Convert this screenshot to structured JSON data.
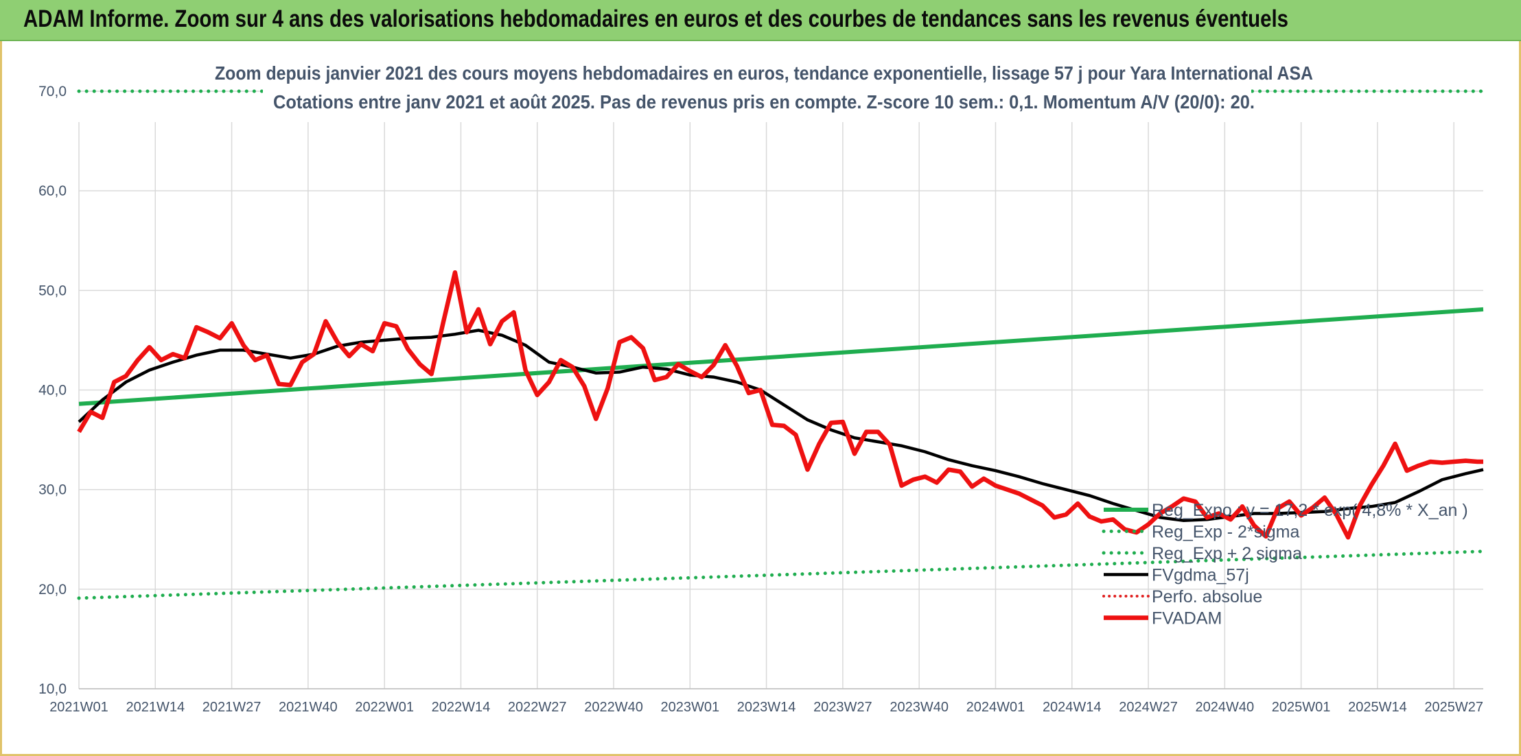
{
  "header": {
    "title": "ADAM Informe. Zoom sur 4 ans des valorisations hebdomadaires en euros et des courbes de tendances sans les revenus éventuels"
  },
  "chart_data": {
    "type": "line",
    "title_line1": "Zoom depuis janvier 2021 des cours moyens hebdomadaires en euros, tendance exponentielle, lissage 57 j pour Yara International ASA",
    "title_line2": "Cotations entre janv 2021 et août 2025. Pas de revenus pris en compte. Z-score 10 sem.: 0,1. Momentum A/V (20/0): 20.",
    "ylim": [
      10,
      70
    ],
    "yticks": [
      "10,0",
      "20,0",
      "30,0",
      "40,0",
      "50,0",
      "60,0",
      "70,0"
    ],
    "xticks": [
      "2021W01",
      "2021W14",
      "2021W27",
      "2021W40",
      "2022W01",
      "2022W14",
      "2022W27",
      "2022W40",
      "2023W01",
      "2023W14",
      "2023W27",
      "2023W40",
      "2024W01",
      "2024W14",
      "2024W27",
      "2024W40",
      "2025W01",
      "2025W14",
      "2025W27"
    ],
    "x_start_week": "2021W01",
    "x_end_week": "2025W32",
    "grid": true,
    "legend_position": "right",
    "colors": {
      "reg_expo": "#1fad4f",
      "sigma": "#1fad4f",
      "fvgdma": "#000000",
      "perfo": "#e02020",
      "fvadam": "#ee1111",
      "grid": "#d9d9d9",
      "text": "#44546a"
    },
    "series": [
      {
        "name": "Reg_Expo : y = 17,2 * exp( 4,8% * X_an )",
        "style": "solid",
        "x": [
          "2021W01",
          "2025W32"
        ],
        "values": [
          38.6,
          48.1
        ]
      },
      {
        "name": "Reg_Exp - 2*sigma",
        "style": "dotted",
        "x": [
          "2021W01",
          "2025W32"
        ],
        "values": [
          19.1,
          23.8
        ]
      },
      {
        "name": "Reg_Exp + 2 sigma",
        "style": "dotted",
        "x": [
          "2021W01",
          "2025W32"
        ],
        "values": [
          70.0,
          70.0
        ]
      },
      {
        "name": "FVgdma_57j",
        "style": "solid",
        "x": [
          "2021W01",
          "2021W05",
          "2021W09",
          "2021W13",
          "2021W17",
          "2021W21",
          "2021W25",
          "2021W29",
          "2021W33",
          "2021W37",
          "2021W41",
          "2021W45",
          "2021W49",
          "2022W01",
          "2022W05",
          "2022W09",
          "2022W13",
          "2022W17",
          "2022W21",
          "2022W25",
          "2022W29",
          "2022W33",
          "2022W37",
          "2022W41",
          "2022W45",
          "2022W49",
          "2023W01",
          "2023W05",
          "2023W09",
          "2023W13",
          "2023W17",
          "2023W21",
          "2023W25",
          "2023W29",
          "2023W33",
          "2023W37",
          "2023W41",
          "2023W45",
          "2023W49",
          "2024W01",
          "2024W05",
          "2024W09",
          "2024W13",
          "2024W17",
          "2024W21",
          "2024W25",
          "2024W29",
          "2024W33",
          "2024W37",
          "2024W41",
          "2024W45",
          "2024W49",
          "2025W01",
          "2025W05",
          "2025W09",
          "2025W13",
          "2025W17",
          "2025W21",
          "2025W25",
          "2025W29",
          "2025W32"
        ],
        "values": [
          36.8,
          39.0,
          40.8,
          42.0,
          42.8,
          43.5,
          44.0,
          44.0,
          43.6,
          43.2,
          43.6,
          44.4,
          44.8,
          45.0,
          45.2,
          45.3,
          45.6,
          46.0,
          45.5,
          44.5,
          42.8,
          42.3,
          41.7,
          41.8,
          42.3,
          42.1,
          41.5,
          41.3,
          40.8,
          40.0,
          38.5,
          37.0,
          36.0,
          35.2,
          34.8,
          34.4,
          33.8,
          33.0,
          32.4,
          31.9,
          31.3,
          30.6,
          30.0,
          29.4,
          28.6,
          27.9,
          27.2,
          26.9,
          27.0,
          27.3,
          27.6,
          27.6,
          27.7,
          27.8,
          28.1,
          28.3,
          28.7,
          29.8,
          31.0,
          31.6,
          32.0
        ]
      },
      {
        "name": "Perfo. absolue",
        "style": "dotted",
        "x": [],
        "values": []
      },
      {
        "name": "FVADAM",
        "style": "thick",
        "x": [
          "2021W01",
          "2021W03",
          "2021W05",
          "2021W07",
          "2021W09",
          "2021W11",
          "2021W13",
          "2021W15",
          "2021W17",
          "2021W19",
          "2021W21",
          "2021W23",
          "2021W25",
          "2021W27",
          "2021W29",
          "2021W31",
          "2021W33",
          "2021W35",
          "2021W37",
          "2021W39",
          "2021W41",
          "2021W43",
          "2021W45",
          "2021W47",
          "2021W49",
          "2021W51",
          "2022W01",
          "2022W03",
          "2022W05",
          "2022W07",
          "2022W09",
          "2022W11",
          "2022W13",
          "2022W15",
          "2022W17",
          "2022W19",
          "2022W21",
          "2022W23",
          "2022W25",
          "2022W27",
          "2022W29",
          "2022W31",
          "2022W33",
          "2022W35",
          "2022W37",
          "2022W39",
          "2022W41",
          "2022W43",
          "2022W45",
          "2022W47",
          "2022W49",
          "2022W51",
          "2023W01",
          "2023W03",
          "2023W05",
          "2023W07",
          "2023W09",
          "2023W11",
          "2023W13",
          "2023W15",
          "2023W17",
          "2023W19",
          "2023W21",
          "2023W23",
          "2023W25",
          "2023W27",
          "2023W29",
          "2023W31",
          "2023W33",
          "2023W35",
          "2023W37",
          "2023W39",
          "2023W41",
          "2023W43",
          "2023W45",
          "2023W47",
          "2023W49",
          "2023W51",
          "2024W01",
          "2024W03",
          "2024W05",
          "2024W07",
          "2024W09",
          "2024W11",
          "2024W13",
          "2024W15",
          "2024W17",
          "2024W19",
          "2024W21",
          "2024W23",
          "2024W25",
          "2024W27",
          "2024W29",
          "2024W31",
          "2024W33",
          "2024W35",
          "2024W37",
          "2024W39",
          "2024W41",
          "2024W43",
          "2024W45",
          "2024W47",
          "2024W49",
          "2024W51",
          "2025W01",
          "2025W03",
          "2025W05",
          "2025W07",
          "2025W09",
          "2025W11",
          "2025W13",
          "2025W15",
          "2025W17",
          "2025W19",
          "2025W21",
          "2025W23",
          "2025W25",
          "2025W27",
          "2025W29",
          "2025W31",
          "2025W32"
        ],
        "values": [
          35.8,
          37.8,
          37.2,
          40.8,
          41.4,
          43.0,
          44.3,
          43.0,
          43.6,
          43.2,
          46.3,
          45.8,
          45.2,
          46.7,
          44.5,
          43.0,
          43.5,
          40.6,
          40.5,
          42.8,
          43.6,
          46.9,
          44.8,
          43.4,
          44.6,
          43.9,
          46.7,
          46.4,
          44.1,
          42.6,
          41.6,
          46.8,
          51.8,
          45.8,
          48.1,
          44.6,
          46.9,
          47.8,
          42.0,
          39.5,
          40.8,
          43.0,
          42.3,
          40.4,
          37.1,
          40.2,
          44.8,
          45.3,
          44.2,
          41.0,
          41.3,
          42.6,
          41.9,
          41.3,
          42.5,
          44.5,
          42.4,
          39.7,
          40.0,
          36.5,
          36.4,
          35.5,
          32.0,
          34.6,
          36.7,
          36.8,
          33.6,
          35.8,
          35.8,
          34.5,
          30.4,
          31.0,
          31.3,
          30.7,
          32.0,
          31.8,
          30.3,
          31.1,
          30.4,
          30.0,
          29.6,
          29.0,
          28.4,
          27.2,
          27.5,
          28.6,
          27.3,
          26.8,
          27.0,
          26.0,
          25.7,
          26.5,
          27.6,
          28.3,
          29.1,
          28.8,
          27.2,
          27.6,
          27.0,
          28.3,
          26.4,
          25.3,
          28.1,
          28.8,
          27.4,
          28.2,
          29.2,
          27.5,
          25.2,
          28.4,
          30.5,
          32.4,
          34.6,
          31.9,
          32.4,
          32.8,
          32.7,
          32.8,
          32.9,
          32.8,
          32.8
        ]
      }
    ]
  }
}
